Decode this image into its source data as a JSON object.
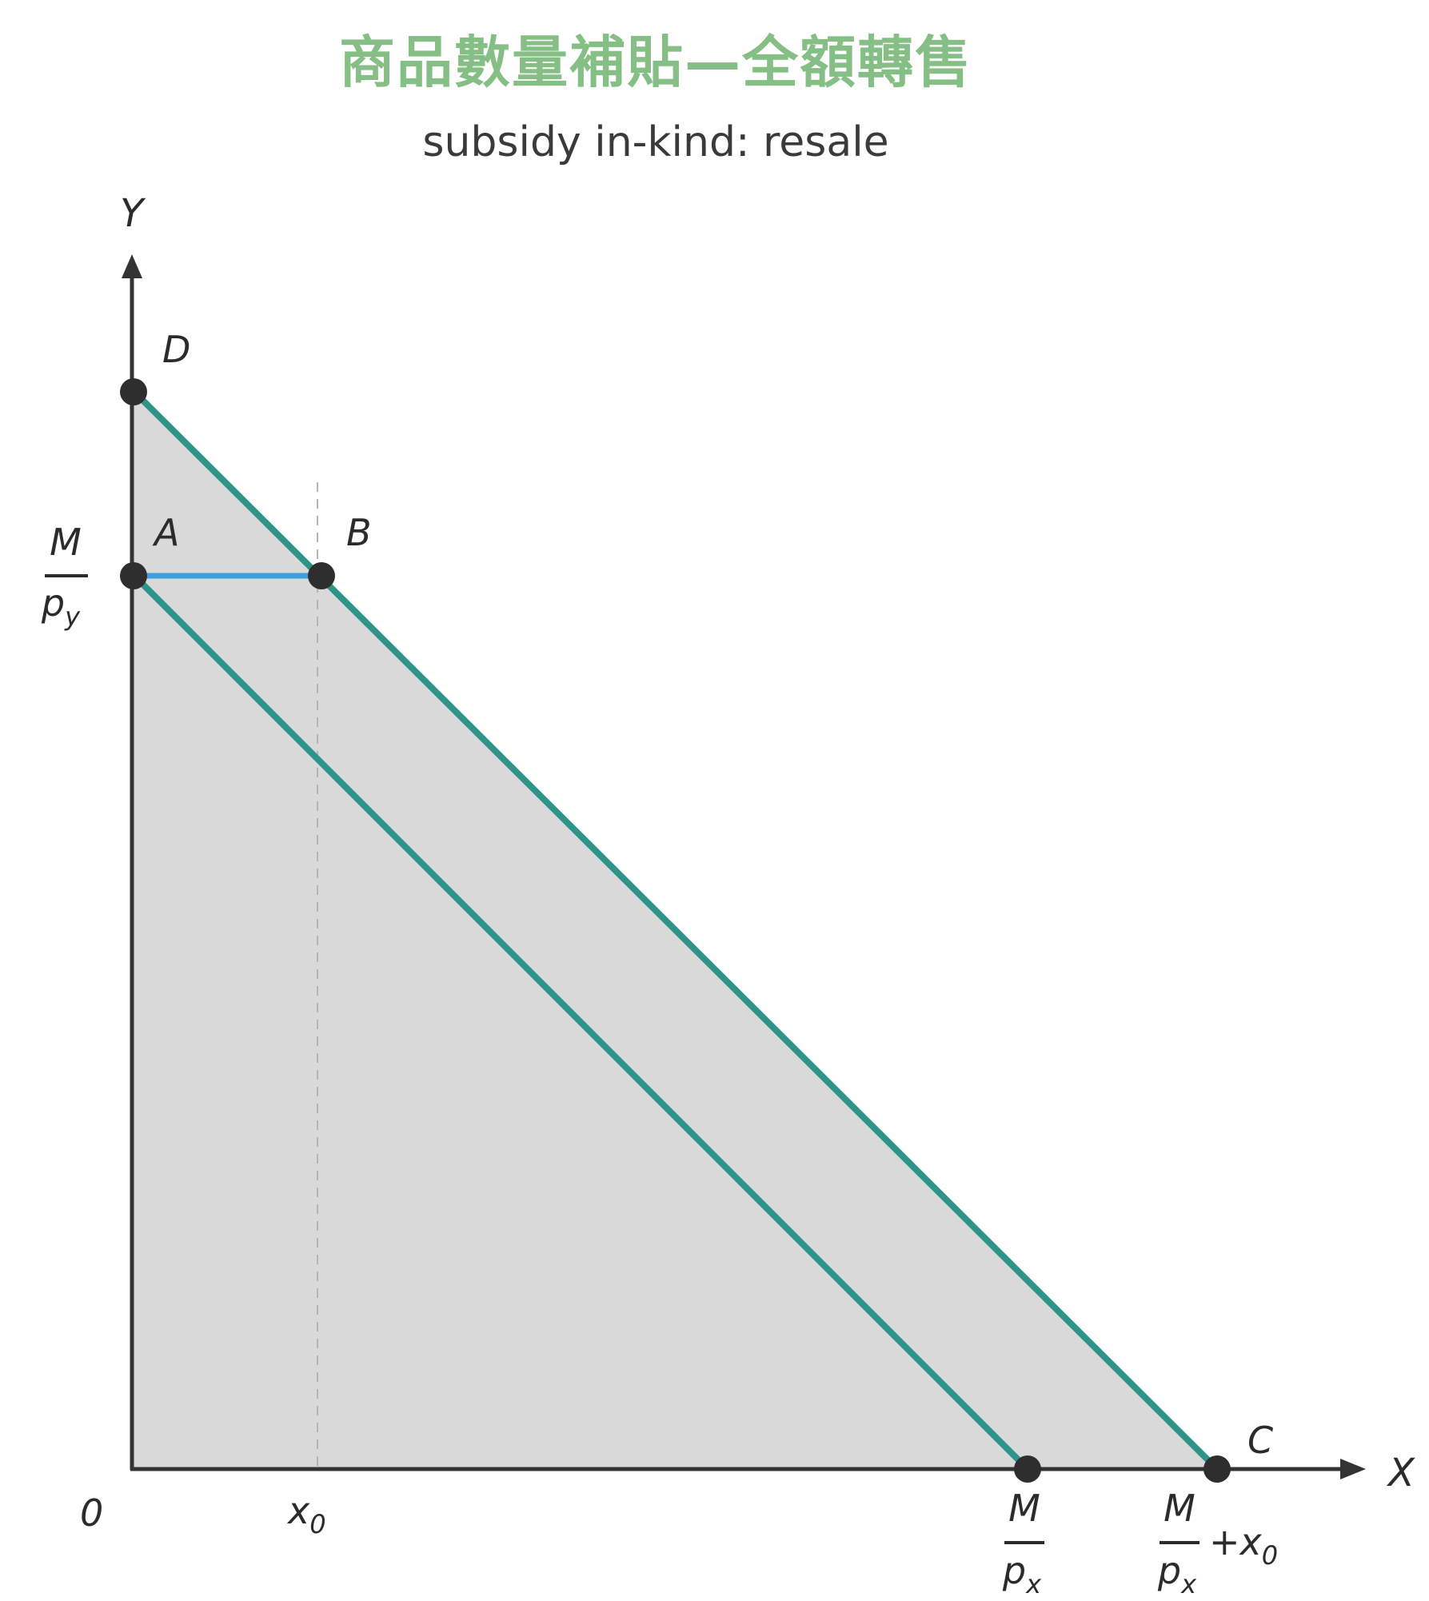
{
  "title": "商品數量補貼—全額轉售",
  "subtitle": "subsidy in-kind: resale",
  "colors": {
    "title": "#86bf86",
    "axis": "#333333",
    "budget_line": "#2f9488",
    "segment": "#3d9fe0",
    "shade": "#d9d9d9",
    "point": "#2e2e2e",
    "guide": "#b5b5b5"
  },
  "axes": {
    "x_label": "X",
    "y_label": "Y",
    "origin_label": "0"
  },
  "points": {
    "D": "D",
    "A": "A",
    "B": "B",
    "C": "C"
  },
  "ticks": {
    "y_intercept": {
      "num": "M",
      "den": "p",
      "sub": "y"
    },
    "x0": {
      "base": "x",
      "sub": "0"
    },
    "x_intercept": {
      "num": "M",
      "den": "p",
      "sub": "x"
    },
    "x_shifted": {
      "num": "M",
      "den": "p",
      "sub": "x",
      "plus": "+x",
      "plus_sub": "0"
    }
  }
}
